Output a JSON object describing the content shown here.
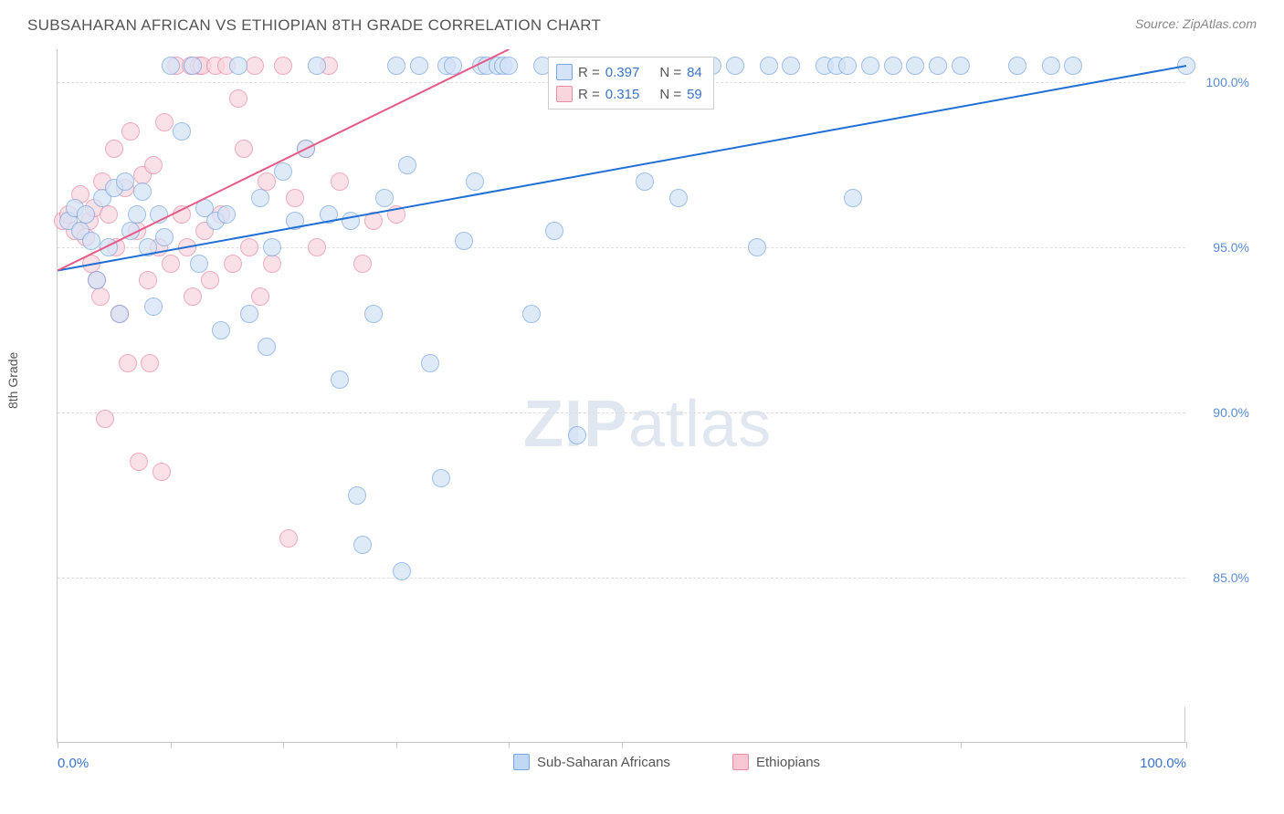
{
  "header": {
    "title": "SUBSAHARAN AFRICAN VS ETHIOPIAN 8TH GRADE CORRELATION CHART",
    "source": "Source: ZipAtlas.com"
  },
  "watermark": {
    "zip": "ZIP",
    "atlas": "atlas"
  },
  "chart": {
    "type": "scatter",
    "y_axis_label": "8th Grade",
    "xlim": [
      0,
      100
    ],
    "ylim": [
      80,
      101
    ],
    "x_ticks": [
      0,
      10,
      20,
      30,
      40,
      50,
      80,
      100
    ],
    "x_tick_labels": {
      "0": "0.0%",
      "100": "100.0%"
    },
    "y_ticks": [
      85,
      90,
      95,
      100
    ],
    "y_tick_labels": {
      "85": "85.0%",
      "90": "90.0%",
      "95": "95.0%",
      "100": "100.0%"
    },
    "background_color": "#ffffff",
    "grid_color": "#dedede",
    "axis_color": "#c8c8c8",
    "tick_label_color": "#3b72c9",
    "marker_radius": 10,
    "marker_stroke_width": 1.2,
    "series": [
      {
        "name": "Sub-Saharan Africans",
        "fill": "#d4e3f7",
        "stroke": "#7aa7e0",
        "fill_opacity": 0.72,
        "R": "0.397",
        "N": "84",
        "trend": {
          "x1": 0,
          "y1": 94.3,
          "x2": 100,
          "y2": 100.5,
          "color": "#1f6fd4",
          "width": 2
        },
        "points": [
          [
            1,
            95.8
          ],
          [
            1.5,
            96.2
          ],
          [
            2,
            95.5
          ],
          [
            2.5,
            96.0
          ],
          [
            3,
            95.2
          ],
          [
            3.5,
            94.0
          ],
          [
            4,
            96.5
          ],
          [
            4.5,
            95.0
          ],
          [
            5,
            96.8
          ],
          [
            5.5,
            93.0
          ],
          [
            6,
            97.0
          ],
          [
            6.5,
            95.5
          ],
          [
            7,
            96.0
          ],
          [
            7.5,
            96.7
          ],
          [
            8,
            95.0
          ],
          [
            8.5,
            93.2
          ],
          [
            9,
            96.0
          ],
          [
            9.5,
            95.3
          ],
          [
            10,
            100.5
          ],
          [
            11,
            98.5
          ],
          [
            12,
            100.5
          ],
          [
            12.5,
            94.5
          ],
          [
            13,
            96.2
          ],
          [
            14,
            95.8
          ],
          [
            14.5,
            92.5
          ],
          [
            15,
            96.0
          ],
          [
            16,
            100.5
          ],
          [
            17,
            93.0
          ],
          [
            18,
            96.5
          ],
          [
            18.5,
            92.0
          ],
          [
            19,
            95.0
          ],
          [
            20,
            97.3
          ],
          [
            21,
            95.8
          ],
          [
            22,
            98.0
          ],
          [
            23,
            100.5
          ],
          [
            24,
            96.0
          ],
          [
            25,
            91.0
          ],
          [
            26,
            95.8
          ],
          [
            26.5,
            87.5
          ],
          [
            27,
            86.0
          ],
          [
            28,
            93.0
          ],
          [
            29,
            96.5
          ],
          [
            30,
            100.5
          ],
          [
            30.5,
            85.2
          ],
          [
            31,
            97.5
          ],
          [
            32,
            100.5
          ],
          [
            33,
            91.5
          ],
          [
            34,
            88.0
          ],
          [
            34.5,
            100.5
          ],
          [
            35,
            100.5
          ],
          [
            36,
            95.2
          ],
          [
            37,
            97.0
          ],
          [
            37.5,
            100.5
          ],
          [
            38,
            100.5
          ],
          [
            39,
            100.5
          ],
          [
            39.5,
            100.5
          ],
          [
            40,
            100.5
          ],
          [
            42,
            93.0
          ],
          [
            43,
            100.5
          ],
          [
            44,
            95.5
          ],
          [
            46,
            89.3
          ],
          [
            48,
            100.5
          ],
          [
            50,
            100.5
          ],
          [
            52,
            97.0
          ],
          [
            54,
            100.5
          ],
          [
            55,
            96.5
          ],
          [
            58,
            100.5
          ],
          [
            60,
            100.5
          ],
          [
            62,
            95.0
          ],
          [
            63,
            100.5
          ],
          [
            65,
            100.5
          ],
          [
            68,
            100.5
          ],
          [
            69,
            100.5
          ],
          [
            70,
            100.5
          ],
          [
            70.5,
            96.5
          ],
          [
            72,
            100.5
          ],
          [
            74,
            100.5
          ],
          [
            76,
            100.5
          ],
          [
            78,
            100.5
          ],
          [
            80,
            100.5
          ],
          [
            85,
            100.5
          ],
          [
            88,
            100.5
          ],
          [
            90,
            100.5
          ],
          [
            100,
            100.5
          ]
        ]
      },
      {
        "name": "Ethiopians",
        "fill": "#f9d5de",
        "stroke": "#e98ca4",
        "fill_opacity": 0.72,
        "R": "0.315",
        "N": "59",
        "trend": {
          "x1": 0,
          "y1": 94.3,
          "x2": 40,
          "y2": 101,
          "color": "#e65a87",
          "width": 2
        },
        "points": [
          [
            0.5,
            95.8
          ],
          [
            1,
            96.0
          ],
          [
            1.5,
            95.5
          ],
          [
            2,
            96.6
          ],
          [
            2.5,
            95.3
          ],
          [
            2.8,
            95.8
          ],
          [
            3,
            94.5
          ],
          [
            3.2,
            96.2
          ],
          [
            3.5,
            94.0
          ],
          [
            3.8,
            93.5
          ],
          [
            4,
            97.0
          ],
          [
            4.2,
            89.8
          ],
          [
            4.5,
            96.0
          ],
          [
            5,
            98.0
          ],
          [
            5.2,
            95.0
          ],
          [
            5.5,
            93.0
          ],
          [
            6,
            96.8
          ],
          [
            6.2,
            91.5
          ],
          [
            6.5,
            98.5
          ],
          [
            7,
            95.5
          ],
          [
            7.2,
            88.5
          ],
          [
            7.5,
            97.2
          ],
          [
            8,
            94.0
          ],
          [
            8.2,
            91.5
          ],
          [
            8.5,
            97.5
          ],
          [
            9,
            95.0
          ],
          [
            9.2,
            88.2
          ],
          [
            9.5,
            98.8
          ],
          [
            10,
            94.5
          ],
          [
            10.5,
            100.5
          ],
          [
            11,
            96.0
          ],
          [
            11.5,
            95.0
          ],
          [
            11.8,
            100.5
          ],
          [
            12,
            93.5
          ],
          [
            12.5,
            100.5
          ],
          [
            12.8,
            100.5
          ],
          [
            13,
            95.5
          ],
          [
            13.5,
            94.0
          ],
          [
            14,
            100.5
          ],
          [
            14.5,
            96.0
          ],
          [
            15,
            100.5
          ],
          [
            15.5,
            94.5
          ],
          [
            16,
            99.5
          ],
          [
            16.5,
            98.0
          ],
          [
            17,
            95.0
          ],
          [
            17.5,
            100.5
          ],
          [
            18,
            93.5
          ],
          [
            18.5,
            97.0
          ],
          [
            19,
            94.5
          ],
          [
            20,
            100.5
          ],
          [
            20.5,
            86.2
          ],
          [
            21,
            96.5
          ],
          [
            22,
            98.0
          ],
          [
            23,
            95.0
          ],
          [
            24,
            100.5
          ],
          [
            25,
            97.0
          ],
          [
            27,
            94.5
          ],
          [
            28,
            95.8
          ],
          [
            30,
            96.0
          ]
        ]
      }
    ],
    "correlation_legend": {
      "row1": {
        "R_label": "R =",
        "N_label": "N ="
      }
    },
    "bottom_legend": {
      "items": [
        {
          "label": "Sub-Saharan Africans",
          "fill": "#c1d8f4",
          "stroke": "#7aa7e0"
        },
        {
          "label": "Ethiopians",
          "fill": "#f7c8d4",
          "stroke": "#e98ca4"
        }
      ]
    }
  }
}
